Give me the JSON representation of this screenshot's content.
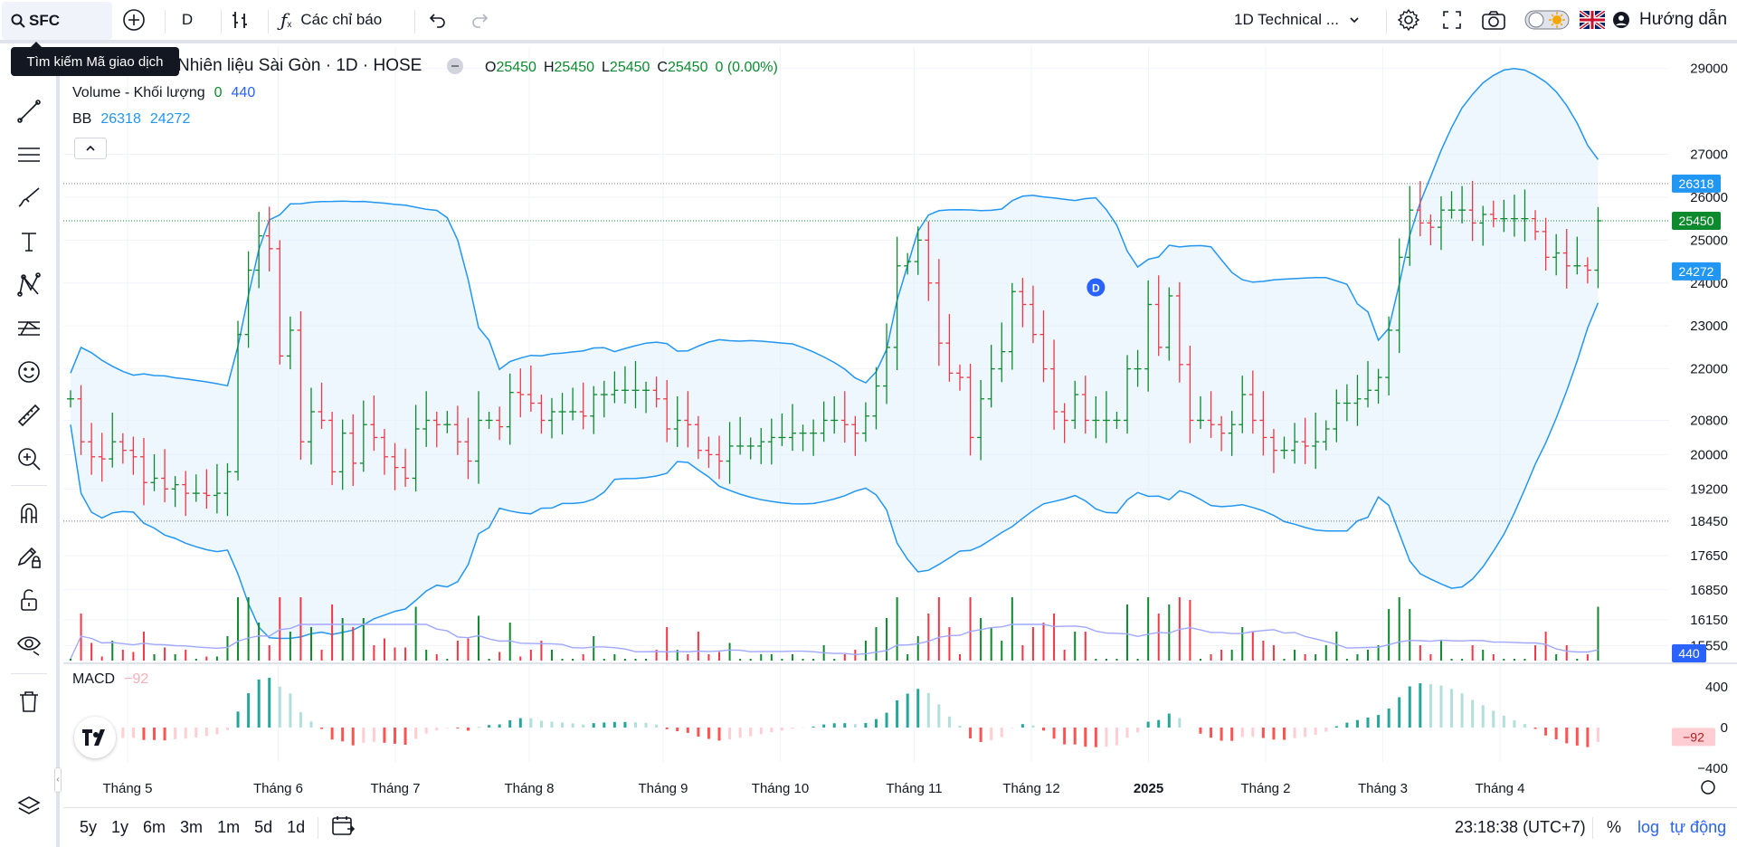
{
  "toolbar": {
    "symbol": "SFC",
    "interval": "D",
    "indicators_label": "Các chỉ báo",
    "layout_name": "1D Technical ...",
    "guide_label": "Hướng dẫn",
    "search_tooltip": "Tìm kiếm Mã giao dịch"
  },
  "header": {
    "title": "Nhiên liệu Sài Gòn · 1D · HOSE",
    "ohlc": {
      "o_label": "O",
      "o": "25450",
      "h_label": "H",
      "h": "25450",
      "l_label": "L",
      "l": "25450",
      "c_label": "C",
      "c": "25450",
      "change": "0 (0.00%)"
    },
    "volume_label": "Volume - Khối lượng",
    "volume_v1": "0",
    "volume_v2": "440",
    "bb_label": "BB",
    "bb_upper": "26318",
    "bb_lower": "24272",
    "macd_label": "MACD",
    "macd_value": "−92"
  },
  "bottom": {
    "ranges": [
      "5y",
      "1y",
      "6m",
      "3m",
      "1m",
      "5d",
      "1d"
    ],
    "time": "23:18:38 (UTC+7)",
    "percent": "%",
    "log": "log",
    "auto": "tự động"
  },
  "colors": {
    "up": "#089981",
    "down": "#f23645",
    "bb": "#2196f3",
    "bb_fill": "#e3f2fd",
    "last_price_bg": "#0d8a2e"
  },
  "chart_data": {
    "type": "ohlc",
    "title": "Nhiên liệu Sài Gòn · 1D · HOSE",
    "x_ticks": [
      "Tháng 5",
      "Tháng 6",
      "Tháng 7",
      "Tháng 8",
      "Tháng 9",
      "Tháng 10",
      "Tháng 11",
      "Tháng 12",
      "2025",
      "Tháng 2",
      "Tháng 3",
      "Tháng 4"
    ],
    "y_ticks": [
      29000,
      27000,
      26000,
      25000,
      24000,
      23000,
      22000,
      20800,
      20000,
      19200,
      18450,
      17650,
      16850,
      16150,
      15550
    ],
    "y_range": [
      15200,
      29500
    ],
    "price_labels": {
      "bb_upper": 26318,
      "last": 25450,
      "bb_lower": 24272,
      "volume": 440
    },
    "hlines": [
      26318,
      25450,
      18450
    ],
    "macd_ticks": [
      400,
      0,
      -400
    ],
    "macd_last": -92,
    "price_series": {
      "close": [
        21300,
        20300,
        19950,
        19900,
        20300,
        20100,
        19950,
        19350,
        19450,
        19200,
        19300,
        19100,
        19100,
        19050,
        19100,
        19600,
        22800,
        24300,
        25100,
        24800,
        22300,
        22900,
        20300,
        21000,
        20800,
        19600,
        20500,
        19800,
        20700,
        20400,
        19950,
        19700,
        19450,
        20600,
        20800,
        20700,
        20700,
        20300,
        19850,
        20800,
        20800,
        20650,
        21450,
        21400,
        21200,
        20800,
        21000,
        21000,
        21000,
        20900,
        21400,
        21400,
        21500,
        21500,
        21500,
        21500,
        21300,
        20600,
        20800,
        20700,
        20100,
        20000,
        19850,
        20200,
        20200,
        20200,
        20300,
        20400,
        20400,
        20500,
        20500,
        20500,
        20800,
        20800,
        20700,
        20500,
        20900,
        21600,
        22500,
        24400,
        24500,
        25000,
        24000,
        22600,
        21900,
        21800,
        20400,
        21300,
        22000,
        22400,
        23800,
        23500,
        22800,
        22000,
        21000,
        20800,
        21400,
        20800,
        20800,
        20800,
        20800,
        22000,
        22000,
        23500,
        22500,
        23700,
        22100,
        20800,
        20800,
        20700,
        20500,
        20700,
        21400,
        20800,
        20400,
        20100,
        20100,
        20300,
        20200,
        20300,
        20600,
        21200,
        21200,
        21300,
        21500,
        21800,
        22900,
        24600,
        25700,
        25400,
        25300,
        25700,
        25700,
        25700,
        25400,
        25600,
        25500,
        25500,
        25500,
        25500,
        25200,
        24600,
        24700,
        24400,
        24400,
        24300,
        25450
      ]
    },
    "series": [
      {
        "name": "BB",
        "type": "band"
      },
      {
        "name": "Volume - Khối lượng",
        "type": "histogram"
      },
      {
        "name": "MACD",
        "type": "histogram"
      }
    ]
  }
}
